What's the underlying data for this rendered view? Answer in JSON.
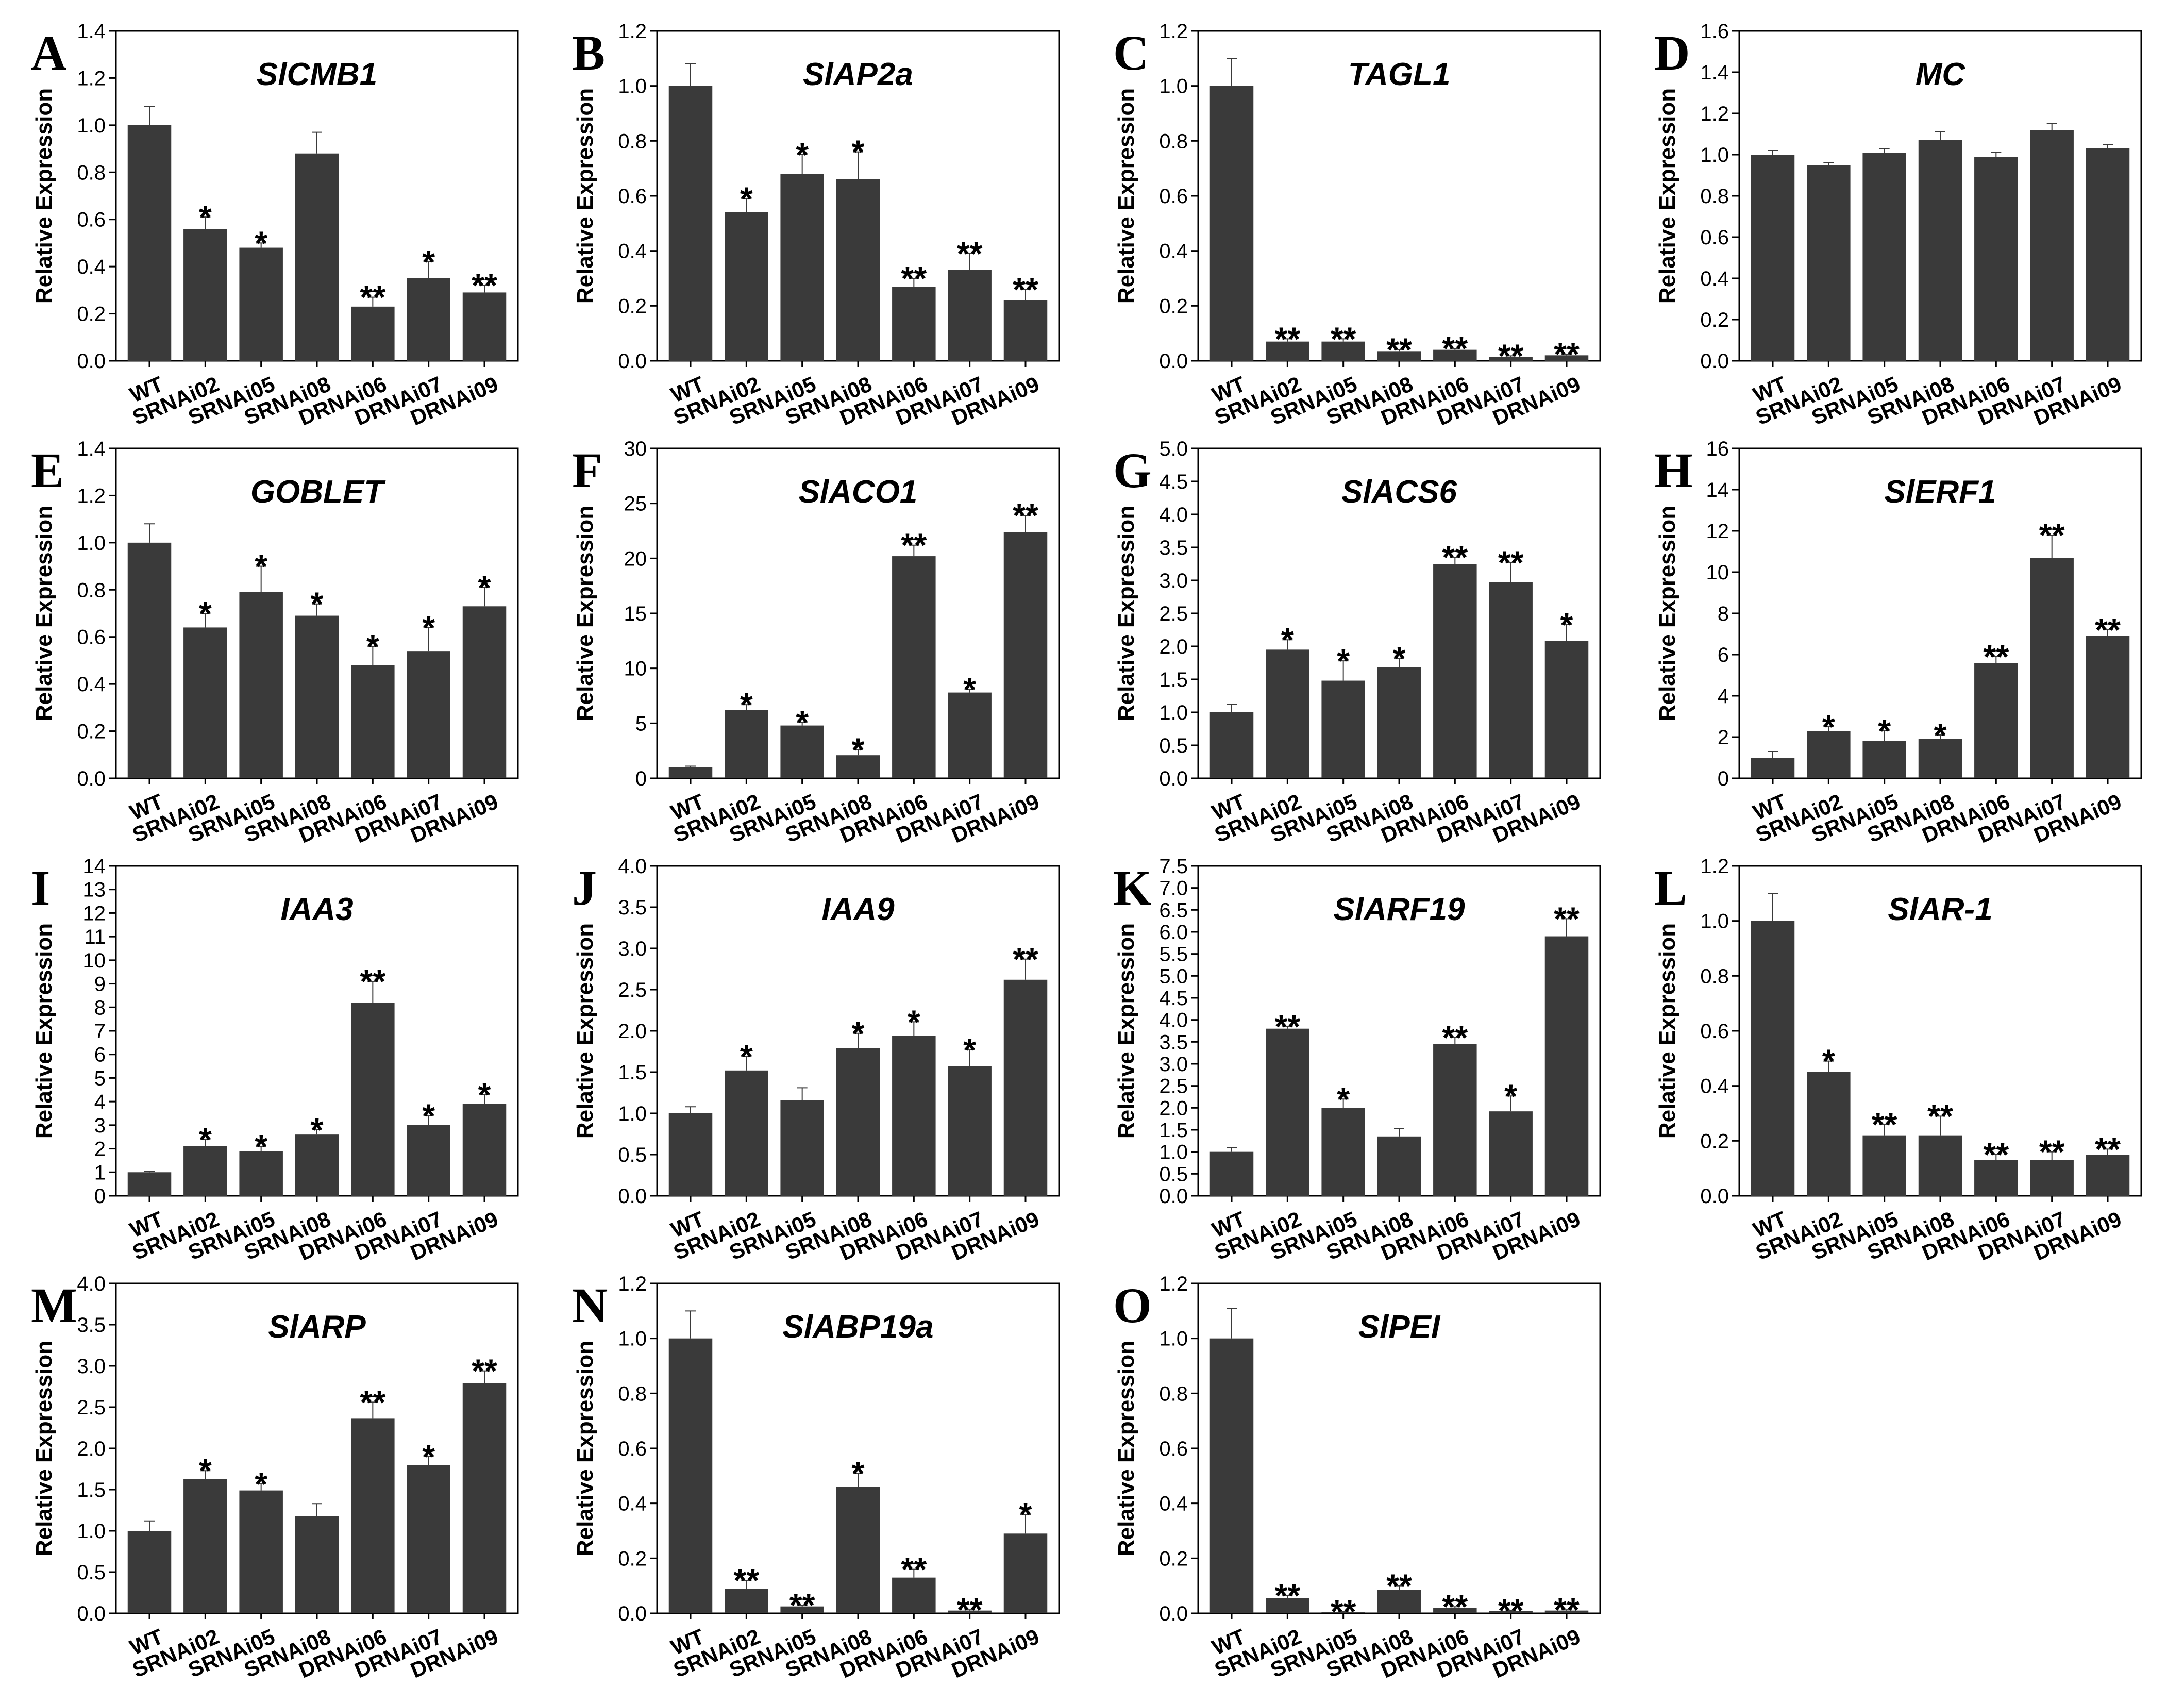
{
  "colors": {
    "bar": "#3a3a3a",
    "axis": "#000000",
    "background": "#ffffff"
  },
  "chart_data": [
    {
      "type": "bar",
      "panel": "A",
      "title": "SlCMB1",
      "ylabel": "Relative Expression",
      "ylim": [
        0,
        1.4
      ],
      "yticks": [
        "0.0",
        "0.2",
        "0.4",
        "0.6",
        "0.8",
        "1.0",
        "1.2",
        "1.4"
      ],
      "categories": [
        "WT",
        "SRNAi02",
        "SRNAi05",
        "SRNAi08",
        "DRNAi06",
        "DRNAi07",
        "DRNAi09"
      ],
      "values": [
        1.0,
        0.56,
        0.48,
        0.88,
        0.23,
        0.35,
        0.29
      ],
      "errors": [
        0.08,
        0.05,
        0.02,
        0.09,
        0.04,
        0.07,
        0.03
      ],
      "significance": [
        "",
        "*",
        "*",
        "",
        "**",
        "*",
        "**"
      ]
    },
    {
      "type": "bar",
      "panel": "B",
      "title": "SlAP2a",
      "ylabel": "Relative Expression",
      "ylim": [
        0,
        1.2
      ],
      "yticks": [
        "0.0",
        "0.2",
        "0.4",
        "0.6",
        "0.8",
        "1.0",
        "1.2"
      ],
      "categories": [
        "WT",
        "SRNAi02",
        "SRNAi05",
        "SRNAi08",
        "DRNAi06",
        "DRNAi07",
        "DRNAi09"
      ],
      "values": [
        1.0,
        0.54,
        0.68,
        0.66,
        0.27,
        0.33,
        0.22
      ],
      "errors": [
        0.08,
        0.05,
        0.07,
        0.1,
        0.03,
        0.06,
        0.04
      ],
      "significance": [
        "",
        "*",
        "*",
        "*",
        "**",
        "**",
        "**"
      ]
    },
    {
      "type": "bar",
      "panel": "C",
      "title": "TAGL1",
      "ylabel": "Relative Expression",
      "ylim": [
        0,
        1.2
      ],
      "yticks": [
        "0.0",
        "0.2",
        "0.4",
        "0.6",
        "0.8",
        "1.0",
        "1.2"
      ],
      "categories": [
        "WT",
        "SRNAi02",
        "SRNAi05",
        "SRNAi08",
        "DRNAi06",
        "DRNAi07",
        "DRNAi09"
      ],
      "values": [
        1.0,
        0.07,
        0.07,
        0.035,
        0.04,
        0.015,
        0.02
      ],
      "errors": [
        0.1,
        0.01,
        0.01,
        0.005,
        0.005,
        0.003,
        0.004
      ],
      "significance": [
        "",
        "**",
        "**",
        "**",
        "**",
        "**",
        "**"
      ]
    },
    {
      "type": "bar",
      "panel": "D",
      "title": "MC",
      "ylabel": "Relative Expression",
      "ylim": [
        0,
        1.6
      ],
      "yticks": [
        "0.0",
        "0.2",
        "0.4",
        "0.6",
        "0.8",
        "1.0",
        "1.2",
        "1.4",
        "1.6"
      ],
      "categories": [
        "WT",
        "SRNAi02",
        "SRNAi05",
        "SRNAi08",
        "DRNAi06",
        "DRNAi07",
        "DRNAi09"
      ],
      "values": [
        1.0,
        0.95,
        1.01,
        1.07,
        0.99,
        1.12,
        1.03
      ],
      "errors": [
        0.02,
        0.01,
        0.02,
        0.04,
        0.02,
        0.03,
        0.02
      ],
      "significance": [
        "",
        "",
        "",
        "",
        "",
        "",
        ""
      ]
    },
    {
      "type": "bar",
      "panel": "E",
      "title": "GOBLET",
      "ylabel": "Relative Expression",
      "ylim": [
        0,
        1.4
      ],
      "yticks": [
        "0.0",
        "0.2",
        "0.4",
        "0.6",
        "0.8",
        "1.0",
        "1.2",
        "1.4"
      ],
      "categories": [
        "WT",
        "SRNAi02",
        "SRNAi05",
        "SRNAi08",
        "DRNAi06",
        "DRNAi07",
        "DRNAi09"
      ],
      "values": [
        1.0,
        0.64,
        0.79,
        0.69,
        0.48,
        0.54,
        0.73
      ],
      "errors": [
        0.08,
        0.06,
        0.11,
        0.05,
        0.08,
        0.1,
        0.08
      ],
      "significance": [
        "",
        "*",
        "*",
        "*",
        "*",
        "*",
        "*"
      ]
    },
    {
      "type": "bar",
      "panel": "F",
      "title": "SlACO1",
      "ylabel": "Relative Expression",
      "ylim": [
        0,
        30
      ],
      "yticks": [
        "0",
        "5",
        "10",
        "15",
        "20",
        "25",
        "30"
      ],
      "categories": [
        "WT",
        "SRNAi02",
        "SRNAi05",
        "SRNAi08",
        "DRNAi06",
        "DRNAi07",
        "DRNAi09"
      ],
      "values": [
        1.0,
        6.2,
        4.8,
        2.1,
        20.2,
        7.8,
        22.4
      ],
      "errors": [
        0.1,
        0.5,
        0.3,
        0.5,
        1.0,
        0.3,
        1.5
      ],
      "significance": [
        "",
        "*",
        "*",
        "*",
        "**",
        "*",
        "**"
      ]
    },
    {
      "type": "bar",
      "panel": "G",
      "title": "SlACS6",
      "ylabel": "Relative Expression",
      "ylim": [
        0,
        5
      ],
      "yticks": [
        "0.0",
        "0.5",
        "1.0",
        "1.5",
        "2.0",
        "2.5",
        "3.0",
        "3.5",
        "4.0",
        "4.5",
        "5.0"
      ],
      "categories": [
        "WT",
        "SRNAi02",
        "SRNAi05",
        "SRNAi08",
        "DRNAi06",
        "DRNAi07",
        "DRNAi09"
      ],
      "values": [
        1.0,
        1.95,
        1.48,
        1.68,
        3.25,
        2.97,
        2.08
      ],
      "errors": [
        0.12,
        0.15,
        0.3,
        0.14,
        0.1,
        0.3,
        0.25
      ],
      "significance": [
        "",
        "*",
        "*",
        "*",
        "**",
        "**",
        "*"
      ]
    },
    {
      "type": "bar",
      "panel": "H",
      "title": "SlERF1",
      "ylabel": "Relative Expression",
      "ylim": [
        0,
        16
      ],
      "yticks": [
        "0",
        "2",
        "4",
        "6",
        "8",
        "10",
        "12",
        "14",
        "16"
      ],
      "categories": [
        "WT",
        "SRNAi02",
        "SRNAi05",
        "SRNAi08",
        "DRNAi06",
        "DRNAi07",
        "DRNAi09"
      ],
      "values": [
        1.0,
        2.3,
        1.8,
        1.9,
        5.6,
        10.7,
        6.9
      ],
      "errors": [
        0.3,
        0.2,
        0.5,
        0.2,
        0.3,
        1.1,
        0.3
      ],
      "significance": [
        "",
        "*",
        "*",
        "*",
        "**",
        "**",
        "**"
      ]
    },
    {
      "type": "bar",
      "panel": "I",
      "title": "IAA3",
      "ylabel": "Relative Expression",
      "ylim": [
        0,
        14
      ],
      "yticks": [
        "0",
        "1",
        "2",
        "3",
        "4",
        "5",
        "6",
        "7",
        "8",
        "9",
        "10",
        "11",
        "12",
        "13",
        "14"
      ],
      "categories": [
        "WT",
        "SRNAi02",
        "SRNAi05",
        "SRNAi08",
        "DRNAi06",
        "DRNAi07",
        "DRNAi09"
      ],
      "values": [
        1.0,
        2.1,
        1.9,
        2.6,
        8.2,
        3.0,
        3.9
      ],
      "errors": [
        0.05,
        0.3,
        0.2,
        0.2,
        0.9,
        0.4,
        0.4
      ],
      "significance": [
        "",
        "*",
        "*",
        "*",
        "**",
        "*",
        "*"
      ]
    },
    {
      "type": "bar",
      "panel": "J",
      "title": "IAA9",
      "ylabel": "Relative Expression",
      "ylim": [
        0,
        4
      ],
      "yticks": [
        "0.0",
        "0.5",
        "1.0",
        "1.5",
        "2.0",
        "2.5",
        "3.0",
        "3.5",
        "4.0"
      ],
      "categories": [
        "WT",
        "SRNAi02",
        "SRNAi05",
        "SRNAi08",
        "DRNAi06",
        "DRNAi07",
        "DRNAi09"
      ],
      "values": [
        1.0,
        1.52,
        1.16,
        1.79,
        1.94,
        1.57,
        2.62
      ],
      "errors": [
        0.08,
        0.17,
        0.15,
        0.18,
        0.17,
        0.2,
        0.25
      ],
      "significance": [
        "",
        "*",
        "",
        "*",
        "*",
        "*",
        "**"
      ]
    },
    {
      "type": "bar",
      "panel": "K",
      "title": "SlARF19",
      "ylabel": "Relative Expression",
      "ylim": [
        0,
        7.5
      ],
      "yticks": [
        "0.0",
        "0.5",
        "1.0",
        "1.5",
        "2.0",
        "2.5",
        "3.0",
        "3.5",
        "4.0",
        "4.5",
        "5.0",
        "5.5",
        "6.0",
        "6.5",
        "7.0",
        "7.5"
      ],
      "categories": [
        "WT",
        "SRNAi02",
        "SRNAi05",
        "SRNAi08",
        "DRNAi06",
        "DRNAi07",
        "DRNAi09"
      ],
      "values": [
        1.0,
        3.8,
        2.0,
        1.35,
        3.45,
        1.92,
        5.9
      ],
      "errors": [
        0.1,
        0.05,
        0.2,
        0.18,
        0.15,
        0.35,
        0.4
      ],
      "significance": [
        "",
        "**",
        "*",
        "",
        "**",
        "*",
        "**"
      ]
    },
    {
      "type": "bar",
      "panel": "L",
      "title": "SlAR-1",
      "ylabel": "Relative Expression",
      "ylim": [
        0,
        1.2
      ],
      "yticks": [
        "0.0",
        "0.2",
        "0.4",
        "0.6",
        "0.8",
        "1.0",
        "1.2"
      ],
      "categories": [
        "WT",
        "SRNAi02",
        "SRNAi05",
        "SRNAi08",
        "DRNAi06",
        "DRNAi07",
        "DRNAi09"
      ],
      "values": [
        1.0,
        0.45,
        0.22,
        0.22,
        0.13,
        0.13,
        0.15
      ],
      "errors": [
        0.1,
        0.04,
        0.04,
        0.07,
        0.02,
        0.03,
        0.02
      ],
      "significance": [
        "",
        "*",
        "**",
        "**",
        "**",
        "**",
        "**"
      ]
    },
    {
      "type": "bar",
      "panel": "M",
      "title": "SlARP",
      "ylabel": "Relative Expression",
      "ylim": [
        0,
        4
      ],
      "yticks": [
        "0.0",
        "0.5",
        "1.0",
        "1.5",
        "2.0",
        "2.5",
        "3.0",
        "3.5",
        "4.0"
      ],
      "categories": [
        "WT",
        "SRNAi02",
        "SRNAi05",
        "SRNAi08",
        "DRNAi06",
        "DRNAi07",
        "DRNAi09"
      ],
      "values": [
        1.0,
        1.63,
        1.49,
        1.18,
        2.36,
        1.8,
        2.79
      ],
      "errors": [
        0.12,
        0.1,
        0.08,
        0.15,
        0.2,
        0.1,
        0.15
      ],
      "significance": [
        "",
        "*",
        "*",
        "",
        "**",
        "*",
        "**"
      ]
    },
    {
      "type": "bar",
      "panel": "N",
      "title": "SlABP19a",
      "ylabel": "Relative Expression",
      "ylim": [
        0,
        1.2
      ],
      "yticks": [
        "0.0",
        "0.2",
        "0.4",
        "0.6",
        "0.8",
        "1.0",
        "1.2"
      ],
      "categories": [
        "WT",
        "SRNAi02",
        "SRNAi05",
        "SRNAi08",
        "DRNAi06",
        "DRNAi07",
        "DRNAi09"
      ],
      "values": [
        1.0,
        0.09,
        0.025,
        0.46,
        0.13,
        0.01,
        0.29
      ],
      "errors": [
        0.1,
        0.03,
        0.005,
        0.05,
        0.03,
        0.003,
        0.07
      ],
      "significance": [
        "",
        "**",
        "**",
        "*",
        "**",
        "**",
        "*"
      ]
    },
    {
      "type": "bar",
      "panel": "O",
      "title": "SlPEI",
      "ylabel": "Relative Expression",
      "ylim": [
        0,
        1.2
      ],
      "yticks": [
        "0.0",
        "0.2",
        "0.4",
        "0.6",
        "0.8",
        "1.0",
        "1.2"
      ],
      "categories": [
        "WT",
        "SRNAi02",
        "SRNAi05",
        "SRNAi08",
        "DRNAi06",
        "DRNAi07",
        "DRNAi09"
      ],
      "values": [
        1.0,
        0.055,
        0.005,
        0.085,
        0.02,
        0.008,
        0.01
      ],
      "errors": [
        0.11,
        0.01,
        0.002,
        0.015,
        0.004,
        0.002,
        0.003
      ],
      "significance": [
        "",
        "**",
        "**",
        "**",
        "**",
        "**",
        "**"
      ]
    }
  ]
}
